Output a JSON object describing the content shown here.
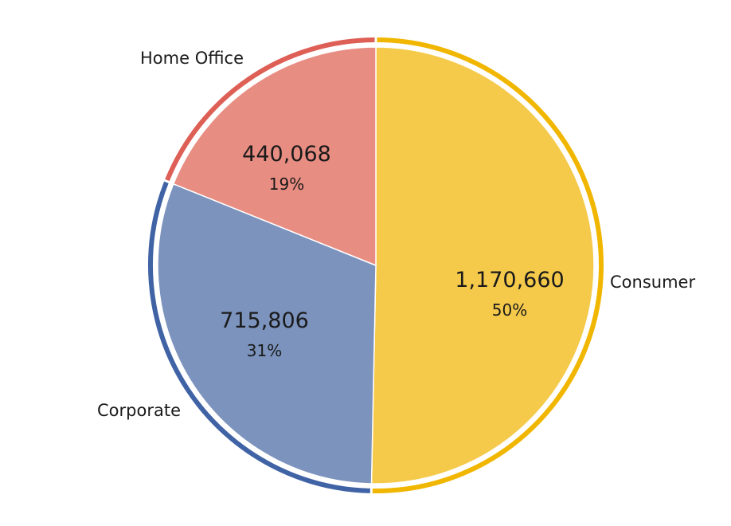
{
  "chart_data": {
    "type": "pie",
    "title": "",
    "slices": [
      {
        "name": "Consumer",
        "value": 1170660,
        "value_label": "1,170,660",
        "percent_label": "50%",
        "fill": "#F5CA4B",
        "ring": "#F0B600"
      },
      {
        "name": "Corporate",
        "value": 715806,
        "value_label": "715,806",
        "percent_label": "31%",
        "fill": "#7B93BD",
        "ring": "#4063A5"
      },
      {
        "name": "Home Office",
        "value": 440068,
        "value_label": "440,068",
        "percent_label": "19%",
        "fill": "#E88D82",
        "ring": "#DD5F55"
      }
    ],
    "start_angle_deg": 0,
    "direction": "clockwise",
    "legend": "none",
    "labels": "outside-category-names"
  }
}
